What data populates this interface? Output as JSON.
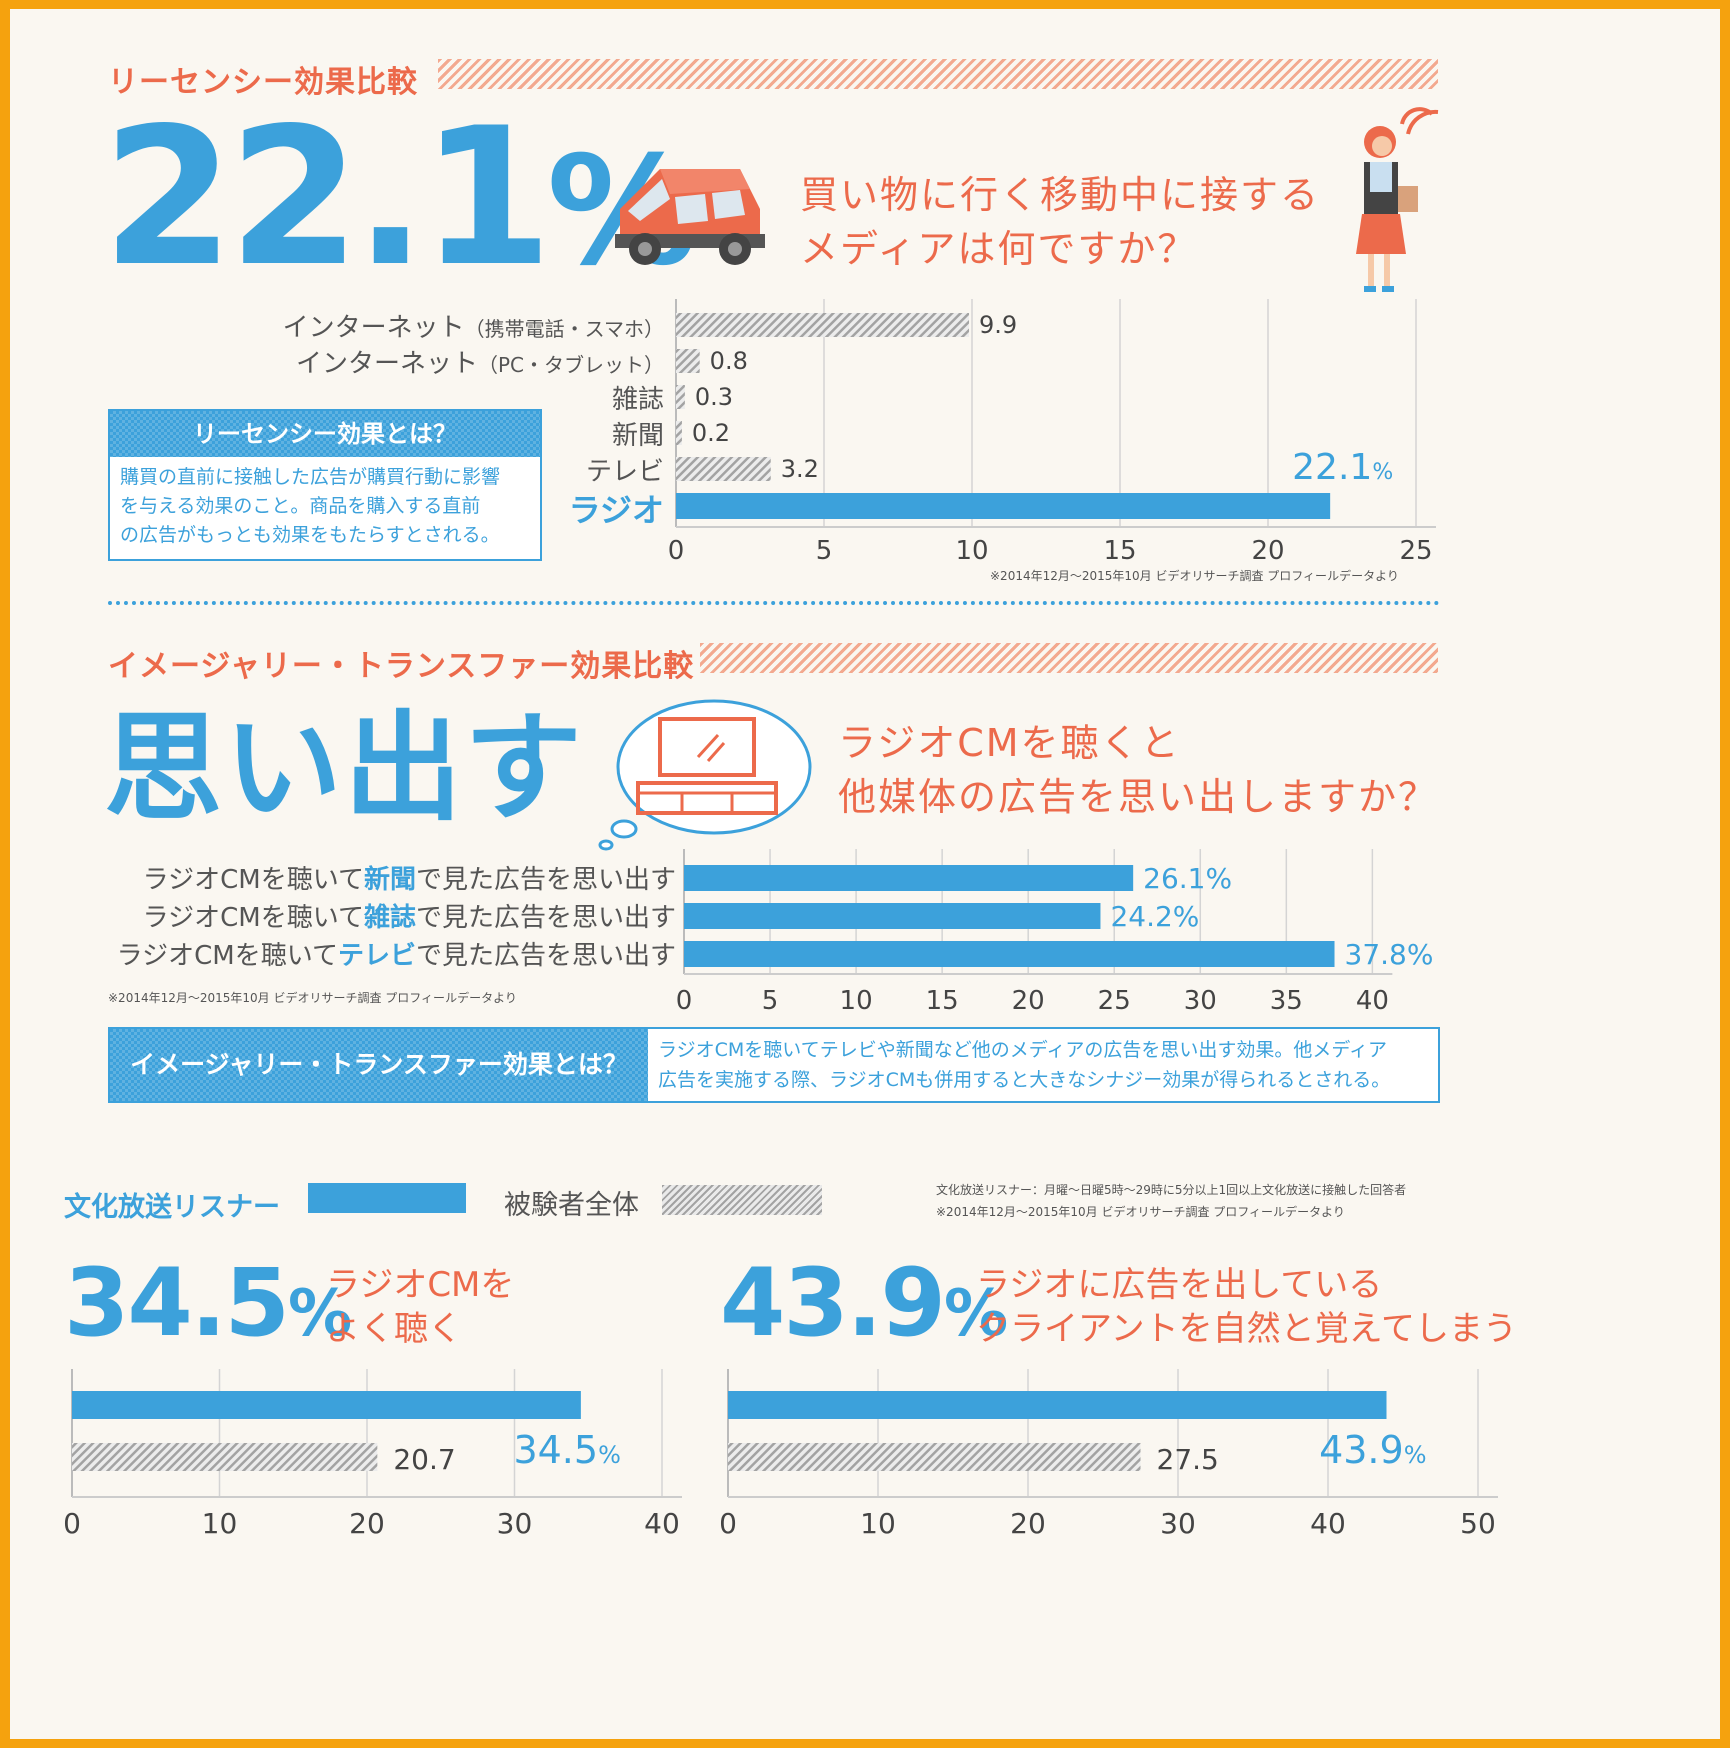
{
  "section1": {
    "title": "リーセンシー効果比較",
    "big_value": "22.1",
    "big_unit": "%",
    "question_line1": "買い物に行く移動中に接する",
    "question_line2": "メディアは何ですか？",
    "definition_title": "リーセンシー効果とは？",
    "definition_text": [
      "購買の直前に接触した広告が購買行動に影響",
      "を与える効果のこと。商品を購入する直前",
      "の広告がもっとも効果をもたらすとされる。"
    ],
    "labels": [
      {
        "main": "インターネット",
        "sub": "（携帯電話・スマホ）"
      },
      {
        "main": "インターネット",
        "sub": "（PC・タブレット）"
      },
      {
        "main": "雑誌",
        "sub": ""
      },
      {
        "main": "新聞",
        "sub": ""
      },
      {
        "main": "テレビ",
        "sub": ""
      },
      {
        "main": "ラジオ",
        "sub": ""
      }
    ],
    "source": "※2014年12月〜2015年10月 ビデオリサーチ調査 プロフィールデータより"
  },
  "section2": {
    "title": "イメージャリー・トランスファー効果比較",
    "big_text": "思い出す",
    "question_line1": "ラジオCMを聴くと",
    "question_line2": "他媒体の広告を思い出しますか？",
    "rows": [
      {
        "pre": "ラジオCMを聴いて",
        "em": "新聞",
        "post": "で見た広告を思い出す"
      },
      {
        "pre": "ラジオCMを聴いて",
        "em": "雑誌",
        "post": "で見た広告を思い出す"
      },
      {
        "pre": "ラジオCMを聴いて",
        "em": "テレビ",
        "post": "で見た広告を思い出す"
      }
    ],
    "source": "※2014年12月〜2015年10月 ビデオリサーチ調査 プロフィールデータより",
    "definition_title": "イメージャリー・トランスファー効果とは？",
    "definition_text": [
      "ラジオCMを聴いてテレビや新聞など他のメディアの広告を思い出す効果。他メディア",
      "広告を実施する際、ラジオCMも併用すると大きなシナジー効果が得られるとされる。"
    ]
  },
  "section3": {
    "legend_listener": "文化放送リスナー",
    "legend_all": "被験者全体",
    "note_line1": "文化放送リスナー：月曜〜日曜5時〜29時に5分以上1回以上文化放送に接触した回答者",
    "note_line2": "※2014年12月〜2015年10月 ビデオリサーチ調査 プロフィールデータより",
    "left_big": "34.5",
    "left_caption_line1": "ラジオCMを",
    "left_caption_line2": "よく聴く",
    "right_big": "43.9",
    "right_caption_line1": "ラジオに広告を出している",
    "right_caption_line2": "クライアントを自然と覚えてしまう",
    "percent": "%"
  },
  "colors": {
    "accent_orange": "#EC6A4B",
    "accent_blue": "#3CA1DB",
    "border": "#F5A20E",
    "background": "#FAF7F1",
    "hatch_gray": "#A3A3A3"
  },
  "icons": {
    "car": "car-icon",
    "woman": "woman-shopper-icon",
    "tv": "tv-thought-bubble-icon"
  },
  "chart_data": [
    {
      "type": "bar",
      "orientation": "horizontal",
      "categories": [
        "インターネット（携帯電話・スマホ）",
        "インターネット（PC・タブレット）",
        "雑誌",
        "新聞",
        "テレビ",
        "ラジオ"
      ],
      "values": [
        9.9,
        0.8,
        0.3,
        0.2,
        3.2,
        22.1
      ],
      "value_labels": [
        "9.9",
        "0.8",
        "0.3",
        "0.2",
        "3.2",
        "22.1"
      ],
      "highlight_index": 5,
      "xlim": [
        0,
        25
      ],
      "xticks": [
        "0",
        "5",
        "10",
        "15",
        "20",
        "25"
      ],
      "grid": true
    },
    {
      "type": "bar",
      "orientation": "horizontal",
      "categories": [
        "ラジオCMを聴いて新聞で見た広告を思い出す",
        "ラジオCMを聴いて雑誌で見た広告を思い出す",
        "ラジオCMを聴いてテレビで見た広告を思い出す"
      ],
      "values": [
        26.1,
        24.2,
        37.8
      ],
      "value_labels": [
        "26.1%",
        "24.2%",
        "37.8%"
      ],
      "xlim": [
        0,
        43
      ],
      "xticks": [
        "0",
        "5",
        "10",
        "15",
        "20",
        "25",
        "30",
        "35",
        "40"
      ],
      "grid": true
    },
    {
      "type": "bar",
      "orientation": "horizontal",
      "series": [
        {
          "name": "文化放送リスナー",
          "values": [
            34.5
          ],
          "label": "34.5"
        },
        {
          "name": "被験者全体",
          "values": [
            20.7
          ],
          "label": "20.7"
        }
      ],
      "xlim": [
        0,
        40
      ],
      "xticks": [
        "0",
        "10",
        "20",
        "30",
        "40"
      ],
      "grid": true
    },
    {
      "type": "bar",
      "orientation": "horizontal",
      "series": [
        {
          "name": "文化放送リスナー",
          "values": [
            43.9
          ],
          "label": "43.9"
        },
        {
          "name": "被験者全体",
          "values": [
            27.5
          ],
          "label": "27.5"
        }
      ],
      "xlim": [
        0,
        50
      ],
      "xticks": [
        "0",
        "10",
        "20",
        "30",
        "40",
        "50"
      ],
      "grid": true
    }
  ]
}
